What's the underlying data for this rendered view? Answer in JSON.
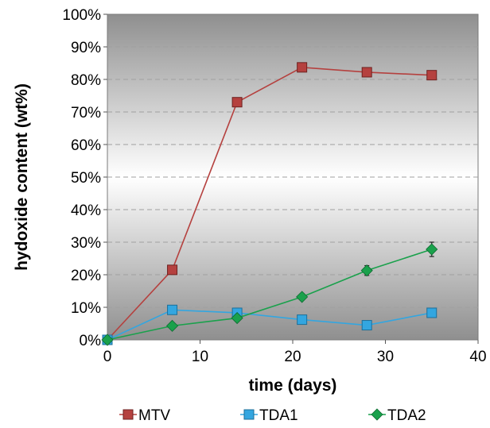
{
  "chart_data": {
    "type": "line",
    "xlabel": "time (days)",
    "ylabel": "hydoxide content (wt%)",
    "xlim": [
      0,
      40
    ],
    "ylim": [
      0,
      100
    ],
    "x_ticks": [
      "0",
      "10",
      "20",
      "30",
      "40"
    ],
    "y_ticks": [
      "0%",
      "10%",
      "20%",
      "30%",
      "40%",
      "50%",
      "60%",
      "70%",
      "80%",
      "90%",
      "100%"
    ],
    "grid": "horizontal dashed",
    "legend_position": "bottom",
    "x": [
      0,
      7,
      14,
      21,
      28,
      35
    ],
    "series": [
      {
        "name": "MTV",
        "color": "#b5413f",
        "marker": "square",
        "values": [
          0,
          21.5,
          73,
          83.7,
          82.2,
          81.3
        ]
      },
      {
        "name": "TDA1",
        "color": "#33a6e0",
        "marker": "square",
        "values": [
          0,
          9.2,
          8.3,
          6.2,
          4.5,
          8.3
        ]
      },
      {
        "name": "TDA2",
        "color": "#1aa14c",
        "marker": "diamond",
        "values": [
          0,
          4.3,
          6.7,
          13.2,
          21.3,
          27.8
        ],
        "error": [
          0,
          0,
          0,
          0,
          1.5,
          2.2
        ]
      }
    ]
  }
}
